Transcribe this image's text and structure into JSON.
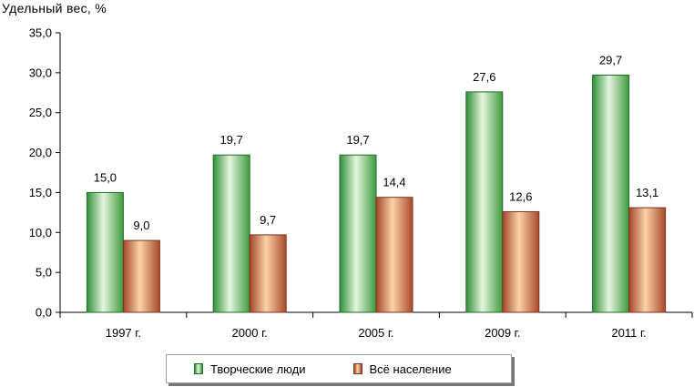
{
  "chart_data": {
    "type": "bar",
    "ylabel": "Удельный вес, %",
    "categories": [
      "1997 г.",
      "2000 г.",
      "2005 г.",
      "2009 г.",
      "2011 г."
    ],
    "series": [
      {
        "name": "Творческие люди",
        "values": [
          15.0,
          19.7,
          19.7,
          27.6,
          29.7
        ],
        "value_labels": [
          "15,0",
          "19,7",
          "19,7",
          "27,6",
          "29,7"
        ],
        "color": "#2e8b35"
      },
      {
        "name": "Всё население",
        "values": [
          9.0,
          9.7,
          14.4,
          12.6,
          13.1
        ],
        "value_labels": [
          "9,0",
          "9,7",
          "14,4",
          "12,6",
          "13,1"
        ],
        "color": "#a0422a"
      }
    ],
    "ylim": [
      0,
      35
    ],
    "yticks": [
      "0,0",
      "5,0",
      "10,0",
      "15,0",
      "20,0",
      "25,0",
      "30,0",
      "35,0"
    ],
    "grid": false,
    "legend_position": "bottom"
  }
}
